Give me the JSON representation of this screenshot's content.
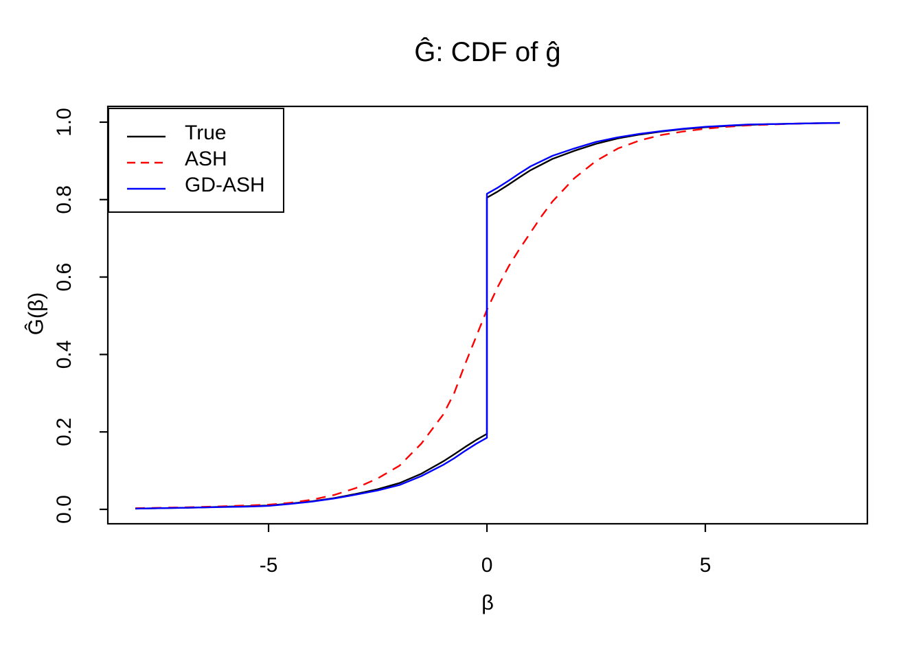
{
  "title": "Ĝ: CDF of ĝ",
  "x_axis": {
    "label": "β",
    "tick_labels": [
      "-5",
      "0",
      "5"
    ]
  },
  "y_axis": {
    "label": "Ĝ(β)",
    "tick_labels": [
      "0.0",
      "0.2",
      "0.4",
      "0.6",
      "0.8",
      "1.0"
    ]
  },
  "legend": {
    "items": [
      {
        "label": "True",
        "color": "#000000",
        "style": "solid"
      },
      {
        "label": "ASH",
        "color": "#FF0000",
        "style": "dashed"
      },
      {
        "label": "GD-ASH",
        "color": "#0000FF",
        "style": "solid"
      }
    ]
  },
  "chart_data": {
    "type": "line",
    "title": "Ĝ: CDF of ĝ",
    "xlabel": "β",
    "ylabel": "Ĝ(β)",
    "xlim": [
      -8.68,
      8.71
    ],
    "ylim": [
      -0.0372,
      1.0407
    ],
    "x_ticks": [
      -5,
      0,
      5
    ],
    "y_ticks": [
      0,
      0.2,
      0.4,
      0.6,
      0.8,
      1.0
    ],
    "grid": false,
    "legend_position": "top-left",
    "note": "True and GD-ASH are step CDFs with a jump at beta=0 (point mass at zero); ASH is a smooth CDF through ~0.51 at 0.",
    "series": [
      {
        "name": "True",
        "color": "#000000",
        "style": "solid",
        "points": [
          [
            -8.05,
            0.002
          ],
          [
            -7.5,
            0.003
          ],
          [
            -7,
            0.004
          ],
          [
            -6.5,
            0.005
          ],
          [
            -6,
            0.007
          ],
          [
            -5.5,
            0.008
          ],
          [
            -5,
            0.01
          ],
          [
            -4.5,
            0.015
          ],
          [
            -4,
            0.021
          ],
          [
            -3.5,
            0.029
          ],
          [
            -3,
            0.04
          ],
          [
            -2.5,
            0.052
          ],
          [
            -2,
            0.068
          ],
          [
            -1.5,
            0.092
          ],
          [
            -1,
            0.124
          ],
          [
            -0.75,
            0.142
          ],
          [
            -0.5,
            0.161
          ],
          [
            -0.25,
            0.179
          ],
          [
            0,
            0.195
          ],
          [
            0,
            0.805
          ],
          [
            0.25,
            0.821
          ],
          [
            0.5,
            0.839
          ],
          [
            0.75,
            0.858
          ],
          [
            1,
            0.876
          ],
          [
            1.5,
            0.905
          ],
          [
            2,
            0.926
          ],
          [
            2.5,
            0.944
          ],
          [
            3,
            0.958
          ],
          [
            3.5,
            0.968
          ],
          [
            4,
            0.976
          ],
          [
            4.5,
            0.982
          ],
          [
            5,
            0.987
          ],
          [
            5.5,
            0.99
          ],
          [
            6,
            0.993
          ],
          [
            6.5,
            0.995
          ],
          [
            7,
            0.996
          ],
          [
            7.5,
            0.997
          ],
          [
            8.08,
            0.998
          ]
        ]
      },
      {
        "name": "ASH",
        "color": "#FF0000",
        "style": "dashed",
        "points": [
          [
            -8.05,
            0.003
          ],
          [
            -7,
            0.005
          ],
          [
            -6,
            0.008
          ],
          [
            -5,
            0.012
          ],
          [
            -4.5,
            0.017
          ],
          [
            -4,
            0.025
          ],
          [
            -3.5,
            0.037
          ],
          [
            -3,
            0.055
          ],
          [
            -2.5,
            0.08
          ],
          [
            -2,
            0.113
          ],
          [
            -1.5,
            0.17
          ],
          [
            -1,
            0.245
          ],
          [
            -0.75,
            0.3
          ],
          [
            -0.5,
            0.375
          ],
          [
            -0.25,
            0.445
          ],
          [
            0,
            0.515
          ],
          [
            0.25,
            0.575
          ],
          [
            0.5,
            0.628
          ],
          [
            0.75,
            0.673
          ],
          [
            1,
            0.715
          ],
          [
            1.25,
            0.757
          ],
          [
            1.5,
            0.795
          ],
          [
            2,
            0.855
          ],
          [
            2.5,
            0.9
          ],
          [
            3,
            0.932
          ],
          [
            3.5,
            0.953
          ],
          [
            4,
            0.967
          ],
          [
            4.5,
            0.976
          ],
          [
            5,
            0.983
          ],
          [
            5.5,
            0.988
          ],
          [
            6,
            0.992
          ],
          [
            7,
            0.996
          ],
          [
            8.08,
            0.998
          ]
        ]
      },
      {
        "name": "GD-ASH",
        "color": "#0000FF",
        "style": "solid",
        "points": [
          [
            -8.05,
            0.002
          ],
          [
            -7.5,
            0.003
          ],
          [
            -7,
            0.004
          ],
          [
            -6.5,
            0.005
          ],
          [
            -6,
            0.006
          ],
          [
            -5.5,
            0.007
          ],
          [
            -5,
            0.009
          ],
          [
            -4.5,
            0.014
          ],
          [
            -4,
            0.02
          ],
          [
            -3.5,
            0.028
          ],
          [
            -3,
            0.038
          ],
          [
            -2.5,
            0.049
          ],
          [
            -2,
            0.063
          ],
          [
            -1.5,
            0.086
          ],
          [
            -1,
            0.115
          ],
          [
            -0.75,
            0.132
          ],
          [
            -0.5,
            0.151
          ],
          [
            -0.25,
            0.169
          ],
          [
            0,
            0.185
          ],
          [
            0,
            0.815
          ],
          [
            0.25,
            0.831
          ],
          [
            0.5,
            0.849
          ],
          [
            0.75,
            0.868
          ],
          [
            1,
            0.886
          ],
          [
            1.5,
            0.913
          ],
          [
            2,
            0.932
          ],
          [
            2.5,
            0.949
          ],
          [
            3,
            0.961
          ],
          [
            3.5,
            0.97
          ],
          [
            4,
            0.977
          ],
          [
            4.5,
            0.983
          ],
          [
            5,
            0.988
          ],
          [
            5.5,
            0.991
          ],
          [
            6,
            0.994
          ],
          [
            6.5,
            0.995
          ],
          [
            7,
            0.996
          ],
          [
            7.5,
            0.997
          ],
          [
            8.08,
            0.998
          ]
        ]
      }
    ]
  }
}
